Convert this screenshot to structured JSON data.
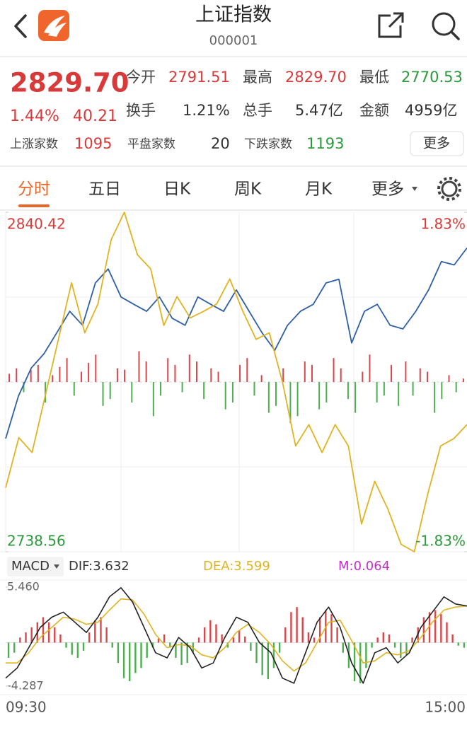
{
  "header": {
    "title": "上证指数",
    "code": "000001"
  },
  "quote": {
    "price": "2829.70",
    "change_pct": "1.44%",
    "change": "40.21",
    "stats": [
      {
        "label": "今开",
        "value": "2791.51",
        "color": "#d83a3a"
      },
      {
        "label": "最高",
        "value": "2829.70",
        "color": "#d83a3a"
      },
      {
        "label": "最低",
        "value": "2770.53",
        "color": "#2a9a3a"
      },
      {
        "label": "换手",
        "value": "1.21%",
        "color": "#333333"
      },
      {
        "label": "总手",
        "value": "5.47亿",
        "color": "#333333"
      },
      {
        "label": "金额",
        "value": "4959亿",
        "color": "#333333"
      }
    ],
    "breadth": [
      {
        "label": "上涨家数",
        "value": "1095",
        "color": "#d83a3a"
      },
      {
        "label": "平盘家数",
        "value": "20",
        "color": "#333333"
      },
      {
        "label": "下跌家数",
        "value": "1193",
        "color": "#2a9a3a"
      }
    ],
    "more_button": "更多"
  },
  "tabs": [
    "分时",
    "五日",
    "日K",
    "周K",
    "月K",
    "更多"
  ],
  "price_chart": {
    "type": "line",
    "ylim": [
      2738.56,
      2840.42
    ],
    "yticks": [
      2840.42,
      2738.56
    ],
    "y2lim": [
      -1.83,
      1.83
    ],
    "y2ticks": [
      {
        "value": 1.83,
        "label": "1.83%"
      },
      {
        "value": -1.83,
        "label": "-1.83%"
      }
    ],
    "series": [
      {
        "color": "#2f5fa6",
        "values": [
          2772.5,
          2785.3,
          2793.7,
          2798.0,
          2804.3,
          2810.7,
          2806.5,
          2819.2,
          2823.4,
          2815.0,
          2812.8,
          2810.7,
          2815.0,
          2808.6,
          2806.5,
          2815.0,
          2812.8,
          2810.7,
          2817.1,
          2810.7,
          2804.3,
          2799.0,
          2806.5,
          2810.7,
          2812.8,
          2819.2,
          2820.3,
          2801.2,
          2810.7,
          2812.8,
          2806.5,
          2805.4,
          2810.7,
          2817.1,
          2825.6,
          2824.6,
          2829.7
        ]
      },
      {
        "color": "#e0b321",
        "axis": "y2",
        "values": [
          -1.14,
          -0.6,
          -0.76,
          -0.15,
          0.46,
          1.07,
          0.53,
          0.84,
          1.53,
          1.83,
          1.37,
          1.22,
          0.61,
          0.92,
          0.69,
          0.76,
          0.84,
          1.11,
          0.76,
          0.46,
          0.53,
          0.0,
          -0.69,
          -0.46,
          -0.76,
          -0.46,
          -0.69,
          -1.53,
          -1.07,
          -1.37,
          -1.75,
          -1.83,
          -1.22,
          -0.69,
          -0.61,
          -0.46
        ]
      }
    ],
    "bars": {
      "up_color": "#d9474b",
      "down_color": "#4caf50",
      "values": [
        12,
        20,
        -15,
        18,
        25,
        -30,
        10,
        22,
        35,
        -20,
        15,
        28,
        40,
        -35,
        -25,
        20,
        18,
        -30,
        45,
        30,
        -50,
        -20,
        35,
        25,
        -15,
        40,
        30,
        -25,
        20,
        15,
        -40,
        -30,
        25,
        35,
        -20,
        10,
        -45,
        -35,
        20,
        -60,
        -50,
        30,
        25,
        -40,
        -30,
        35,
        20,
        -25,
        -45,
        15,
        40,
        -30,
        -20,
        25,
        -35,
        30,
        -20,
        20,
        15,
        -45,
        -25,
        10,
        -15,
        5
      ]
    }
  },
  "macd": {
    "type": "macd",
    "selector": "MACD",
    "dif_label": "DIF:3.632",
    "dea_label": "DEA:3.599",
    "m_label": "M:0.064",
    "ylim": [
      -4.287,
      5.46
    ],
    "yticks": [
      {
        "value": 5.46,
        "label": "5.460"
      },
      {
        "value": -4.287,
        "label": "-4.287"
      }
    ],
    "histogram": {
      "up_color": "#d9474b",
      "down_color": "#4caf50",
      "values": [
        -1.5,
        -1.0,
        0.5,
        1.0,
        1.5,
        2.0,
        2.5,
        2.0,
        1.5,
        0.8,
        -0.5,
        -1.2,
        -1.5,
        -0.8,
        1.0,
        2.2,
        2.5,
        1.5,
        -0.5,
        -2.0,
        -3.5,
        -3.8,
        -3.0,
        -2.5,
        -1.5,
        -0.5,
        0.4,
        0.8,
        -0.5,
        -1.5,
        -2.2,
        -2.0,
        -1.0,
        0.5,
        1.5,
        2.2,
        1.8,
        0.8,
        -0.5,
        0.5,
        1.2,
        0.6,
        -0.8,
        -2.0,
        -3.2,
        -3.6,
        -2.5,
        -1.0,
        1.5,
        3.0,
        3.5,
        2.5,
        1.0,
        0.5,
        2.5,
        3.2,
        2.8,
        1.5,
        -1.0,
        -2.5,
        -3.8,
        -4.0,
        -2.5,
        -0.5,
        0.5,
        1.0,
        0.8,
        -0.5,
        -1.5,
        -1.2,
        0.5,
        1.5,
        2.5,
        3.0,
        3.2,
        2.8,
        2.0,
        0.8,
        -0.3,
        -0.5
      ]
    },
    "dif": {
      "color": "#222222",
      "values": [
        -3.5,
        -2.5,
        -0.5,
        1.5,
        2.5,
        3.0,
        2.0,
        1.0,
        2.5,
        4.5,
        5.4,
        4.0,
        1.5,
        -1.0,
        -1.5,
        0.5,
        -0.5,
        -2.5,
        -2.0,
        0.5,
        2.5,
        2.0,
        0.0,
        -1.0,
        -3.5,
        -4.0,
        -1.0,
        2.0,
        3.5,
        1.5,
        -2.0,
        -4.0,
        -1.0,
        -0.5,
        -2.0,
        -1.0,
        1.5,
        3.0,
        4.5,
        3.8,
        3.6
      ]
    },
    "dea": {
      "color": "#e0b321",
      "values": [
        -2.0,
        -2.0,
        -1.0,
        0.5,
        1.5,
        2.5,
        2.3,
        1.8,
        2.0,
        3.2,
        4.3,
        4.2,
        2.8,
        0.8,
        -0.5,
        -0.2,
        -0.3,
        -1.2,
        -1.5,
        -0.5,
        1.0,
        1.8,
        1.0,
        -0.2,
        -1.8,
        -2.8,
        -2.0,
        0.0,
        2.0,
        2.2,
        0.2,
        -2.0,
        -1.8,
        -1.0,
        -1.2,
        -0.8,
        0.5,
        2.0,
        3.2,
        3.5,
        3.6
      ]
    },
    "dif_label_color": "#333333",
    "dea_label_color": "#e0b321",
    "m_label_color": "#c030c8"
  },
  "time_axis": [
    "09:30",
    "15:00"
  ]
}
